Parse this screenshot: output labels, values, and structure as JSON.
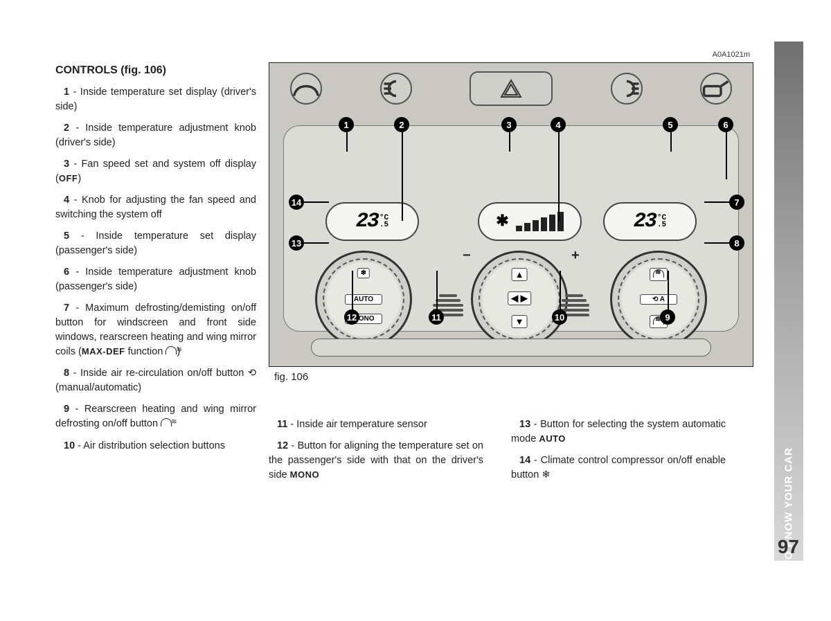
{
  "page_number": "97",
  "side_tab": "GETTING TO KNOW YOUR CAR",
  "heading": "CONTROLS (fig. 106)",
  "figure": {
    "ref": "A0A1021m",
    "caption": "fig. 106",
    "temp_left": "23",
    "temp_left_dec": ".5",
    "temp_left_unit": "°C",
    "temp_right": "23",
    "temp_right_dec": ".5",
    "temp_right_unit": "°C",
    "knob_left_auto": "AUTO",
    "knob_left_mono": "MONO",
    "knob_right_a": "A",
    "callouts": [
      "1",
      "2",
      "3",
      "4",
      "5",
      "6",
      "7",
      "8",
      "9",
      "10",
      "11",
      "12",
      "13",
      "14"
    ]
  },
  "items_left": [
    {
      "n": "1",
      "t": " - Inside temperature set display (driver's side)"
    },
    {
      "n": "2",
      "t": " - Inside temperature adjustment knob (driver's side)"
    },
    {
      "n": "3",
      "t": " - Fan speed set and system off display (",
      "sc": "OFF",
      "t2": ")"
    },
    {
      "n": "4",
      "t": " - Knob for adjusting the fan speed and switching the system off"
    },
    {
      "n": "5",
      "t": " - Inside temperature set display (passenger's side)"
    },
    {
      "n": "6",
      "t": " - Inside temperature adjustment knob (passenger's side)"
    },
    {
      "n": "7",
      "t": " - Maximum defrosting/demisting on/off button for windscreen and front side windows, rearscreen heating and wing mirror coils (",
      "sc": "MAX-DEF",
      "t2": " function ",
      "icon": true,
      "t3": ")"
    },
    {
      "n": "8",
      "t": " - Inside air re-circulation on/off button ⟲ (manual/automatic)"
    },
    {
      "n": "9",
      "t": " - Rearscreen heating and wing mirror defrosting on/off button ",
      "icon": true
    },
    {
      "n": "10",
      "t": " - Air distribution selection buttons"
    }
  ],
  "items_mid": [
    {
      "n": "11",
      "t": " - Inside air temperature sensor"
    },
    {
      "n": "12",
      "t": " - Button for aligning the temperature set on the passenger's side with that on the driver's side ",
      "sc": "MONO"
    }
  ],
  "items_right": [
    {
      "n": "13",
      "t": " - Button for selecting the system automatic mode ",
      "sc": "AUTO"
    },
    {
      "n": "14",
      "t": " - Climate control compressor on/off enable button ❄"
    }
  ]
}
